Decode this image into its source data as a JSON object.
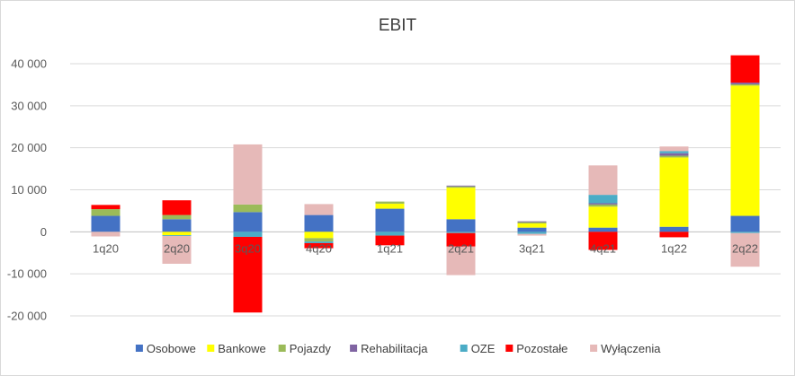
{
  "chart_data": {
    "type": "bar",
    "stacked": true,
    "title": "EBIT",
    "categories": [
      "1q20",
      "2q20",
      "3q20",
      "4q20",
      "1q21",
      "2q21",
      "3q21",
      "4q21",
      "1q22",
      "2q22"
    ],
    "ylim": [
      -20000,
      40000
    ],
    "yticks": [
      -20000,
      -10000,
      0,
      10000,
      20000,
      30000,
      40000
    ],
    "ytick_labels": [
      "-20 000",
      "-10 000",
      "0",
      "10 000",
      "20 000",
      "30 000",
      "40 000"
    ],
    "grid": true,
    "legend_position": "bottom",
    "series": [
      {
        "name": "Osobowe",
        "color": "#4472C4",
        "values": [
          3800,
          3000,
          4700,
          4000,
          5500,
          3000,
          1000,
          1000,
          1200,
          3800
        ]
      },
      {
        "name": "Bankowe",
        "color": "#FFFF00",
        "values": [
          0,
          -800,
          0,
          -1500,
          1200,
          7500,
          1000,
          5000,
          16500,
          31000
        ]
      },
      {
        "name": "Pojazdy",
        "color": "#9BBB59",
        "values": [
          1600,
          1000,
          1800,
          -800,
          500,
          300,
          300,
          500,
          400,
          300
        ]
      },
      {
        "name": "Rehabilitacja",
        "color": "#8064A2",
        "values": [
          0,
          0,
          0,
          0,
          0,
          200,
          200,
          300,
          600,
          400
        ]
      },
      {
        "name": "OZE",
        "color": "#4BACC6",
        "values": [
          0,
          -200,
          -1200,
          -400,
          -900,
          -300,
          -500,
          2000,
          500,
          -300
        ]
      },
      {
        "name": "Pozostałe",
        "color": "#FF0000",
        "values": [
          1000,
          3500,
          -18000,
          -1200,
          -2300,
          -3200,
          0,
          -4300,
          -1300,
          6500
        ]
      },
      {
        "name": "Wyłączenia",
        "color": "#E6B9B8",
        "values": [
          -1100,
          -6600,
          14300,
          2600,
          0,
          -6800,
          -400,
          7000,
          1100,
          -8000
        ]
      }
    ]
  }
}
